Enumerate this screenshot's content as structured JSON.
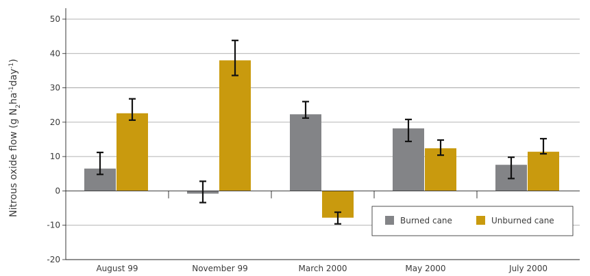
{
  "chart_data": {
    "type": "bar",
    "categories": [
      "August 99",
      "November 99",
      "March 2000",
      "May 2000",
      "July 2000"
    ],
    "series": [
      {
        "name": "Burned cane",
        "color": "#838487",
        "values": [
          6.5,
          -0.8,
          22.3,
          18.2,
          7.6
        ],
        "error_low": [
          4.8,
          -3.4,
          21.2,
          14.4,
          3.6
        ],
        "error_high": [
          11.2,
          2.8,
          26.0,
          20.8,
          9.8
        ]
      },
      {
        "name": "Unburned cane",
        "color": "#c99a0e",
        "values": [
          22.6,
          38.0,
          -7.8,
          12.4,
          11.4
        ],
        "error_low": [
          20.6,
          33.6,
          -9.6,
          10.4,
          10.8
        ],
        "error_high": [
          26.8,
          43.8,
          -6.2,
          14.8,
          15.2
        ]
      }
    ],
    "ylabel": {
      "main": "Nitrous oxide flow (g N",
      "sub1": "2",
      "mid": "ha",
      "sup1": "-1",
      "mid2": "day",
      "sup2": "-1",
      "end": ")"
    },
    "ylim": [
      -20,
      50
    ],
    "yticks": [
      -20,
      -10,
      0,
      10,
      20,
      30,
      40,
      50
    ],
    "grid": true,
    "legend_position": "bottom-right"
  }
}
